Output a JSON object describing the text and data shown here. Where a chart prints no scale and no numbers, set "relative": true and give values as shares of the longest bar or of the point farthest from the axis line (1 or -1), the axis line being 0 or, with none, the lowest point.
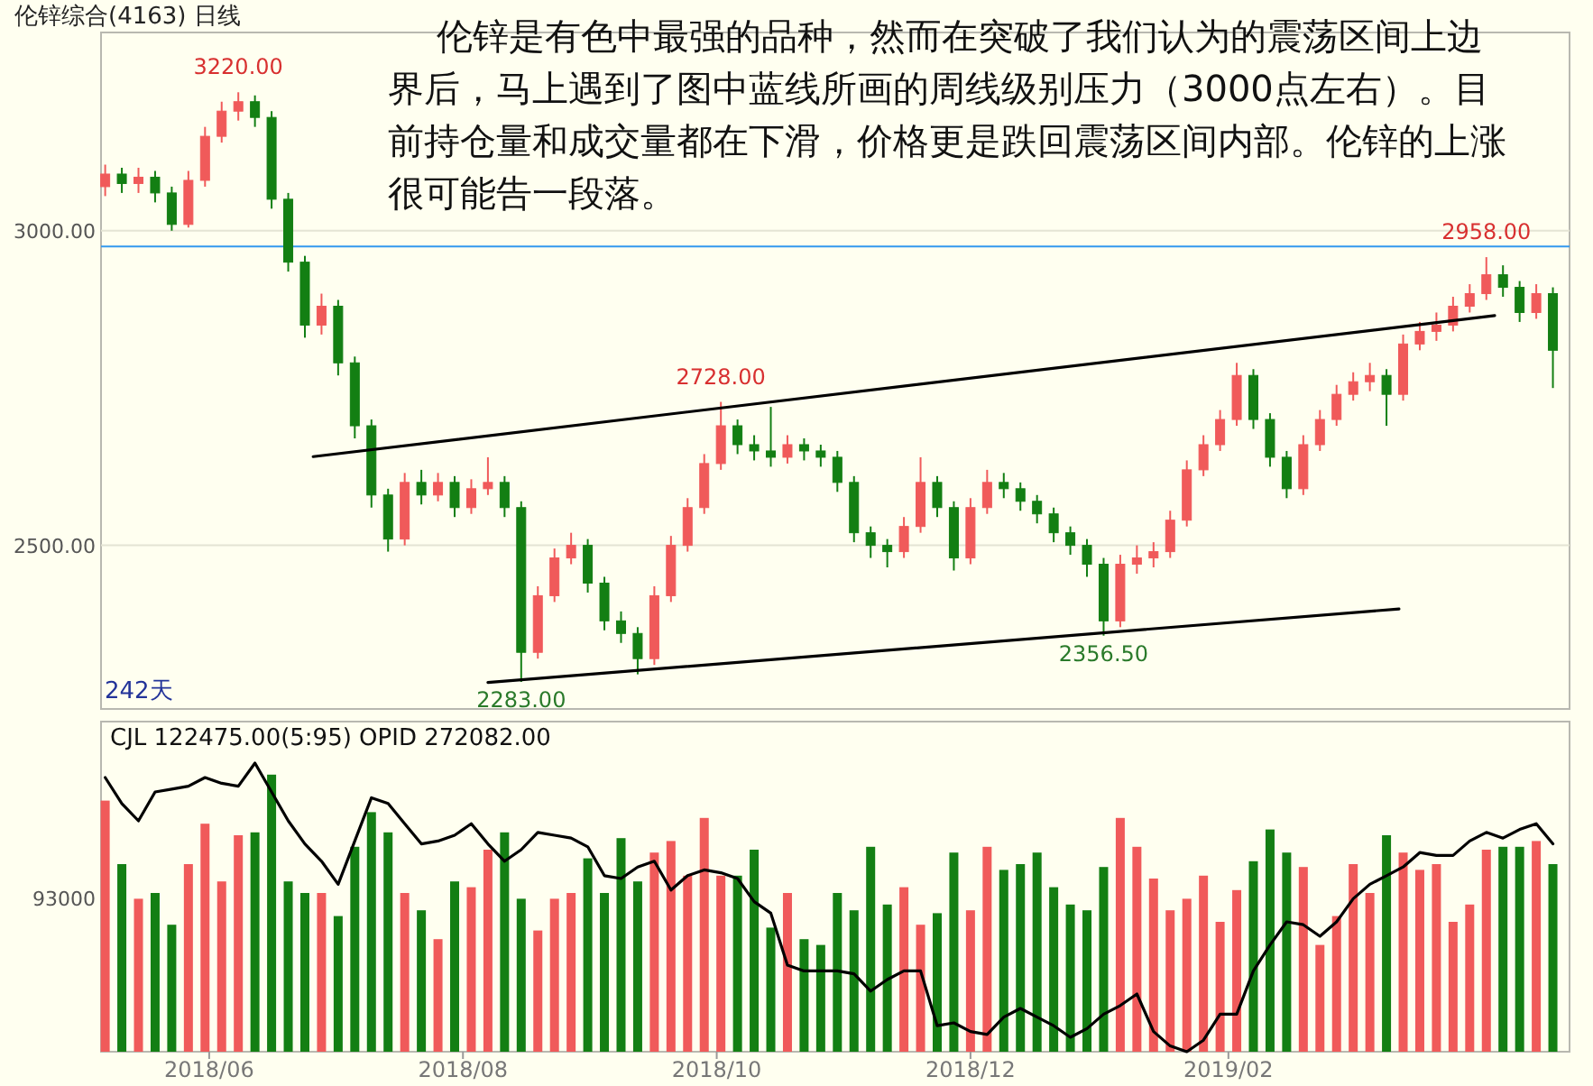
{
  "chart_data": [
    {
      "type": "candlestick",
      "title": "伦锌综合(4163)   日线",
      "x": [
        "2018-05-07",
        "2018-05-11",
        "2018-05-15",
        "2018-05-19",
        "2018-05-23",
        "2018-05-27",
        "2018-05-31",
        "2018-06-04",
        "2018-06-08",
        "2018-06-12",
        "2018-06-16",
        "2018-06-20",
        "2018-06-24",
        "2018-06-28",
        "2018-07-02",
        "2018-07-06",
        "2018-07-10",
        "2018-07-14",
        "2018-07-18",
        "2018-07-22",
        "2018-07-26",
        "2018-07-30",
        "2018-08-03",
        "2018-08-07",
        "2018-08-11",
        "2018-08-15",
        "2018-08-19",
        "2018-08-23",
        "2018-08-27",
        "2018-08-31",
        "2018-09-04",
        "2018-09-08",
        "2018-09-12",
        "2018-09-16",
        "2018-09-20",
        "2018-09-24",
        "2018-09-28",
        "2018-10-02",
        "2018-10-06",
        "2018-10-10",
        "2018-10-14",
        "2018-10-18",
        "2018-10-22",
        "2018-10-26",
        "2018-10-30",
        "2018-11-03",
        "2018-11-07",
        "2018-11-11",
        "2018-11-15",
        "2018-11-19",
        "2018-11-23",
        "2018-11-27",
        "2018-12-01",
        "2018-12-05",
        "2018-12-09",
        "2018-12-13",
        "2018-12-17",
        "2018-12-21",
        "2018-12-25",
        "2018-12-29",
        "2019-01-02",
        "2019-01-06",
        "2019-01-10",
        "2019-01-14",
        "2019-01-18",
        "2019-01-22",
        "2019-01-26",
        "2019-01-30",
        "2019-02-03",
        "2019-02-07",
        "2019-02-11",
        "2019-02-15",
        "2019-02-19",
        "2019-02-23",
        "2019-02-27",
        "2019-03-03",
        "2019-03-07",
        "2019-03-11",
        "2019-03-15",
        "2019-03-19",
        "2019-03-23",
        "2019-03-27",
        "2019-03-31",
        "2019-04-04",
        "2019-04-08",
        "2019-04-12",
        "2019-04-16",
        "2019-04-20"
      ],
      "ohlc": [
        [
          3070,
          3105,
          3055,
          3090
        ],
        [
          3090,
          3100,
          3060,
          3075
        ],
        [
          3075,
          3100,
          3060,
          3085
        ],
        [
          3085,
          3095,
          3045,
          3060
        ],
        [
          3060,
          3070,
          3000,
          3010
        ],
        [
          3010,
          3095,
          3005,
          3080
        ],
        [
          3080,
          3165,
          3070,
          3150
        ],
        [
          3150,
          3205,
          3140,
          3190
        ],
        [
          3190,
          3220,
          3175,
          3205
        ],
        [
          3205,
          3215,
          3165,
          3180
        ],
        [
          3180,
          3190,
          3035,
          3050
        ],
        [
          3050,
          3060,
          2935,
          2950
        ],
        [
          2950,
          2960,
          2830,
          2850
        ],
        [
          2850,
          2900,
          2835,
          2880
        ],
        [
          2880,
          2890,
          2770,
          2790
        ],
        [
          2790,
          2800,
          2670,
          2690
        ],
        [
          2690,
          2700,
          2560,
          2580
        ],
        [
          2580,
          2590,
          2490,
          2510
        ],
        [
          2510,
          2615,
          2500,
          2600
        ],
        [
          2600,
          2620,
          2565,
          2580
        ],
        [
          2580,
          2615,
          2570,
          2600
        ],
        [
          2600,
          2610,
          2545,
          2560
        ],
        [
          2560,
          2605,
          2550,
          2590
        ],
        [
          2590,
          2640,
          2580,
          2600
        ],
        [
          2600,
          2610,
          2545,
          2560
        ],
        [
          2560,
          2570,
          2283,
          2330
        ],
        [
          2330,
          2435,
          2320,
          2420
        ],
        [
          2420,
          2495,
          2410,
          2480
        ],
        [
          2480,
          2520,
          2470,
          2500
        ],
        [
          2500,
          2510,
          2425,
          2440
        ],
        [
          2440,
          2450,
          2365,
          2380
        ],
        [
          2380,
          2395,
          2345,
          2360
        ],
        [
          2360,
          2370,
          2295,
          2320
        ],
        [
          2320,
          2435,
          2310,
          2420
        ],
        [
          2420,
          2515,
          2410,
          2500
        ],
        [
          2500,
          2575,
          2490,
          2560
        ],
        [
          2560,
          2645,
          2550,
          2630
        ],
        [
          2630,
          2728,
          2620,
          2690
        ],
        [
          2690,
          2700,
          2645,
          2660
        ],
        [
          2660,
          2675,
          2635,
          2650
        ],
        [
          2650,
          2720,
          2625,
          2640
        ],
        [
          2640,
          2675,
          2630,
          2660
        ],
        [
          2660,
          2670,
          2635,
          2650
        ],
        [
          2650,
          2660,
          2625,
          2640
        ],
        [
          2640,
          2650,
          2585,
          2600
        ],
        [
          2600,
          2610,
          2505,
          2520
        ],
        [
          2520,
          2530,
          2480,
          2500
        ],
        [
          2500,
          2510,
          2465,
          2490
        ],
        [
          2490,
          2545,
          2480,
          2530
        ],
        [
          2530,
          2640,
          2520,
          2600
        ],
        [
          2600,
          2610,
          2545,
          2560
        ],
        [
          2560,
          2570,
          2460,
          2480
        ],
        [
          2480,
          2575,
          2470,
          2560
        ],
        [
          2560,
          2620,
          2550,
          2600
        ],
        [
          2600,
          2615,
          2575,
          2590
        ],
        [
          2590,
          2600,
          2555,
          2570
        ],
        [
          2570,
          2580,
          2535,
          2550
        ],
        [
          2550,
          2560,
          2505,
          2520
        ],
        [
          2520,
          2530,
          2485,
          2500
        ],
        [
          2500,
          2510,
          2450,
          2470
        ],
        [
          2470,
          2480,
          2356.5,
          2380
        ],
        [
          2380,
          2485,
          2370,
          2470
        ],
        [
          2470,
          2500,
          2455,
          2480
        ],
        [
          2480,
          2505,
          2465,
          2490
        ],
        [
          2490,
          2555,
          2480,
          2540
        ],
        [
          2540,
          2635,
          2530,
          2620
        ],
        [
          2620,
          2675,
          2610,
          2660
        ],
        [
          2660,
          2715,
          2650,
          2700
        ],
        [
          2700,
          2790,
          2690,
          2770
        ],
        [
          2770,
          2780,
          2685,
          2700
        ],
        [
          2700,
          2710,
          2625,
          2640
        ],
        [
          2640,
          2650,
          2575,
          2590
        ],
        [
          2590,
          2675,
          2580,
          2660
        ],
        [
          2660,
          2715,
          2650,
          2700
        ],
        [
          2700,
          2755,
          2690,
          2740
        ],
        [
          2740,
          2775,
          2730,
          2760
        ],
        [
          2760,
          2790,
          2745,
          2770
        ],
        [
          2770,
          2780,
          2690,
          2740
        ],
        [
          2740,
          2835,
          2730,
          2820
        ],
        [
          2820,
          2855,
          2810,
          2840
        ],
        [
          2840,
          2870,
          2825,
          2850
        ],
        [
          2850,
          2895,
          2840,
          2880
        ],
        [
          2880,
          2915,
          2870,
          2900
        ],
        [
          2900,
          2958,
          2890,
          2930
        ],
        [
          2930,
          2945,
          2895,
          2910
        ],
        [
          2910,
          2920,
          2855,
          2870
        ],
        [
          2870,
          2915,
          2860,
          2900
        ],
        [
          2900,
          2910,
          2750,
          2810
        ]
      ],
      "colors": [
        "#f05a5a",
        "#137f13",
        "#f05a5a",
        "#137f13",
        "#137f13",
        "#f05a5a",
        "#f05a5a",
        "#f05a5a",
        "#f05a5a",
        "#137f13",
        "#137f13",
        "#137f13",
        "#137f13",
        "#f05a5a",
        "#137f13",
        "#137f13",
        "#137f13",
        "#137f13",
        "#f05a5a",
        "#137f13",
        "#f05a5a",
        "#137f13",
        "#f05a5a",
        "#f05a5a",
        "#137f13",
        "#137f13",
        "#f05a5a",
        "#f05a5a",
        "#f05a5a",
        "#137f13",
        "#137f13",
        "#137f13",
        "#137f13",
        "#f05a5a",
        "#f05a5a",
        "#f05a5a",
        "#f05a5a",
        "#f05a5a",
        "#137f13",
        "#137f13",
        "#137f13",
        "#f05a5a",
        "#137f13",
        "#137f13",
        "#137f13",
        "#137f13",
        "#137f13",
        "#137f13",
        "#f05a5a",
        "#f05a5a",
        "#137f13",
        "#137f13",
        "#f05a5a",
        "#f05a5a",
        "#137f13",
        "#137f13",
        "#137f13",
        "#137f13",
        "#137f13",
        "#137f13",
        "#137f13",
        "#f05a5a",
        "#f05a5a",
        "#f05a5a",
        "#f05a5a",
        "#f05a5a",
        "#f05a5a",
        "#f05a5a",
        "#f05a5a",
        "#137f13",
        "#137f13",
        "#137f13",
        "#f05a5a",
        "#f05a5a",
        "#f05a5a",
        "#f05a5a",
        "#f05a5a",
        "#137f13",
        "#f05a5a",
        "#f05a5a",
        "#f05a5a",
        "#f05a5a",
        "#f05a5a",
        "#f05a5a",
        "#137f13",
        "#137f13",
        "#f05a5a",
        "#137f13"
      ],
      "series": [
        {
          "type": "line",
          "color": "#000000",
          "x": [
            "2018-06-26",
            "2019-04-06"
          ],
          "values": [
            2641,
            2865
          ]
        },
        {
          "type": "line",
          "color": "#000000",
          "x": [
            "2018-08-07",
            "2019-03-14"
          ],
          "values": [
            2282,
            2399
          ]
        }
      ],
      "ylim": [
        2240,
        3315
      ],
      "yticks": [
        {
          "value": 3000,
          "label": "3000.00"
        },
        {
          "value": 2500,
          "label": "2500.00"
        }
      ],
      "xlim": [
        "2018-05-06",
        "2019-04-24"
      ],
      "grid": "y",
      "tick_labels": "y",
      "ref_lines": [
        {
          "axis": "y",
          "value": 2975,
          "color": "#3399ee"
        }
      ],
      "annotations": [
        "伦锌是有色中最强的品种，然而在突破了我们认为的震荡区间上边界后，马上遇到了图中蓝线所画的周线级别压力（3000点左右）。目前持仓量和成交量都在下滑，价格更是跌回震荡区间内部。伦锌的上涨很可能告一段落。",
        "242天",
        {
          "text": "3220.00",
          "x": "2018-06-08",
          "y": 3220
        },
        {
          "text": "2283.00",
          "x": "2018-08-15",
          "y": 2283
        },
        {
          "text": "2728.00",
          "x": "2018-10-02",
          "y": 2728
        },
        {
          "text": "2356.50",
          "x": "2019-01-02",
          "y": 2356.5
        },
        {
          "text": "2958.00",
          "x": "2019-04-04",
          "y": 2958
        }
      ]
    },
    {
      "type": "bar",
      "relative": true,
      "tick_labels": "x",
      "x": [
        "2018-05-07",
        "2018-05-11",
        "2018-05-15",
        "2018-05-19",
        "2018-05-23",
        "2018-05-27",
        "2018-05-31",
        "2018-06-04",
        "2018-06-08",
        "2018-06-12",
        "2018-06-16",
        "2018-06-20",
        "2018-06-24",
        "2018-06-28",
        "2018-07-02",
        "2018-07-06",
        "2018-07-10",
        "2018-07-14",
        "2018-07-18",
        "2018-07-22",
        "2018-07-26",
        "2018-07-30",
        "2018-08-03",
        "2018-08-07",
        "2018-08-11",
        "2018-08-15",
        "2018-08-19",
        "2018-08-23",
        "2018-08-27",
        "2018-08-31",
        "2018-09-04",
        "2018-09-08",
        "2018-09-12",
        "2018-09-16",
        "2018-09-20",
        "2018-09-24",
        "2018-09-28",
        "2018-10-02",
        "2018-10-06",
        "2018-10-10",
        "2018-10-14",
        "2018-10-18",
        "2018-10-22",
        "2018-10-26",
        "2018-10-30",
        "2018-11-03",
        "2018-11-07",
        "2018-11-11",
        "2018-11-15",
        "2018-11-19",
        "2018-11-23",
        "2018-11-27",
        "2018-12-01",
        "2018-12-05",
        "2018-12-09",
        "2018-12-13",
        "2018-12-17",
        "2018-12-21",
        "2018-12-25",
        "2018-12-29",
        "2019-01-02",
        "2019-01-06",
        "2019-01-10",
        "2019-01-14",
        "2019-01-18",
        "2019-01-22",
        "2019-01-26",
        "2019-01-30",
        "2019-02-03",
        "2019-02-07",
        "2019-02-11",
        "2019-02-15",
        "2019-02-19",
        "2019-02-23",
        "2019-02-27",
        "2019-03-03",
        "2019-03-07",
        "2019-03-11",
        "2019-03-15",
        "2019-03-19",
        "2019-03-23",
        "2019-03-27",
        "2019-03-31",
        "2019-04-04",
        "2019-04-08",
        "2019-04-12",
        "2019-04-16",
        "2019-04-20"
      ],
      "series": [
        {
          "type": "bar",
          "values": [
            0.87,
            0.65,
            0.53,
            0.55,
            0.44,
            0.65,
            0.79,
            0.59,
            0.75,
            0.76,
            0.96,
            0.59,
            0.55,
            0.55,
            0.47,
            0.71,
            0.83,
            0.76,
            0.55,
            0.49,
            0.39,
            0.59,
            0.57,
            0.7,
            0.76,
            0.53,
            0.42,
            0.53,
            0.55,
            0.67,
            0.55,
            0.74,
            0.59,
            0.69,
            0.73,
            0.61,
            0.81,
            0.61,
            0.61,
            0.7,
            0.43,
            0.55,
            0.39,
            0.37,
            0.55,
            0.49,
            0.71,
            0.51,
            0.57,
            0.44,
            0.48,
            0.69,
            0.49,
            0.71,
            0.63,
            0.65,
            0.69,
            0.57,
            0.51,
            0.49,
            0.64,
            0.81,
            0.71,
            0.6,
            0.49,
            0.53,
            0.61,
            0.45,
            0.56,
            0.66,
            0.77,
            0.69,
            0.64,
            0.37,
            0.47,
            0.65,
            0.55,
            0.75,
            0.69,
            0.63,
            0.65,
            0.45,
            0.51,
            0.7,
            0.71,
            0.71,
            0.73,
            0.65
          ],
          "colors": [
            "#f05a5a",
            "#137f13",
            "#f05a5a",
            "#137f13",
            "#137f13",
            "#f05a5a",
            "#f05a5a",
            "#f05a5a",
            "#f05a5a",
            "#137f13",
            "#137f13",
            "#137f13",
            "#137f13",
            "#f05a5a",
            "#137f13",
            "#137f13",
            "#137f13",
            "#137f13",
            "#f05a5a",
            "#137f13",
            "#f05a5a",
            "#137f13",
            "#f05a5a",
            "#f05a5a",
            "#137f13",
            "#137f13",
            "#f05a5a",
            "#f05a5a",
            "#f05a5a",
            "#137f13",
            "#137f13",
            "#137f13",
            "#137f13",
            "#f05a5a",
            "#f05a5a",
            "#f05a5a",
            "#f05a5a",
            "#f05a5a",
            "#137f13",
            "#137f13",
            "#137f13",
            "#f05a5a",
            "#137f13",
            "#137f13",
            "#137f13",
            "#137f13",
            "#137f13",
            "#137f13",
            "#f05a5a",
            "#f05a5a",
            "#137f13",
            "#137f13",
            "#f05a5a",
            "#f05a5a",
            "#137f13",
            "#137f13",
            "#137f13",
            "#137f13",
            "#137f13",
            "#137f13",
            "#137f13",
            "#f05a5a",
            "#f05a5a",
            "#f05a5a",
            "#f05a5a",
            "#f05a5a",
            "#f05a5a",
            "#f05a5a",
            "#f05a5a",
            "#137f13",
            "#137f13",
            "#137f13",
            "#f05a5a",
            "#f05a5a",
            "#f05a5a",
            "#f05a5a",
            "#f05a5a",
            "#137f13",
            "#f05a5a",
            "#f05a5a",
            "#f05a5a",
            "#f05a5a",
            "#f05a5a",
            "#f05a5a",
            "#137f13",
            "#137f13",
            "#f05a5a",
            "#137f13"
          ]
        },
        {
          "type": "line",
          "color": "#000000",
          "values": [
            0.95,
            0.86,
            0.8,
            0.9,
            0.91,
            0.92,
            0.95,
            0.93,
            0.92,
            1,
            0.9,
            0.8,
            0.72,
            0.66,
            0.58,
            0.73,
            0.88,
            0.86,
            0.79,
            0.72,
            0.73,
            0.75,
            0.79,
            0.72,
            0.66,
            0.7,
            0.76,
            0.75,
            0.74,
            0.71,
            0.61,
            0.6,
            0.64,
            0.66,
            0.56,
            0.61,
            0.63,
            0.62,
            0.6,
            0.52,
            0.48,
            0.3,
            0.28,
            0.28,
            0.28,
            0.27,
            0.21,
            0.25,
            0.28,
            0.28,
            0.09,
            0.1,
            0.07,
            0.06,
            0.12,
            0.15,
            0.12,
            0.09,
            0.05,
            0.08,
            0.13,
            0.16,
            0.2,
            0.07,
            0.02,
            0,
            0.04,
            0.13,
            0.13,
            0.28,
            0.37,
            0.45,
            0.44,
            0.4,
            0.45,
            0.53,
            0.58,
            0.61,
            0.64,
            0.69,
            0.68,
            0.68,
            0.73,
            0.76,
            0.74,
            0.77,
            0.79,
            0.72
          ]
        }
      ],
      "xlim": [
        "2018-05-06",
        "2019-04-24"
      ],
      "xticks": [
        {
          "value": "2018-06-01",
          "label": "2018/06"
        },
        {
          "value": "2018-08-01",
          "label": "2018/08"
        },
        {
          "value": "2018-10-01",
          "label": "2018/10"
        },
        {
          "value": "2018-12-01",
          "label": "2018/12"
        },
        {
          "value": "2019-02-01",
          "label": "2019/02"
        }
      ],
      "annotations": [
        "CJL   122475.00(5:95)     OPID 272082.00",
        "93000"
      ]
    }
  ]
}
